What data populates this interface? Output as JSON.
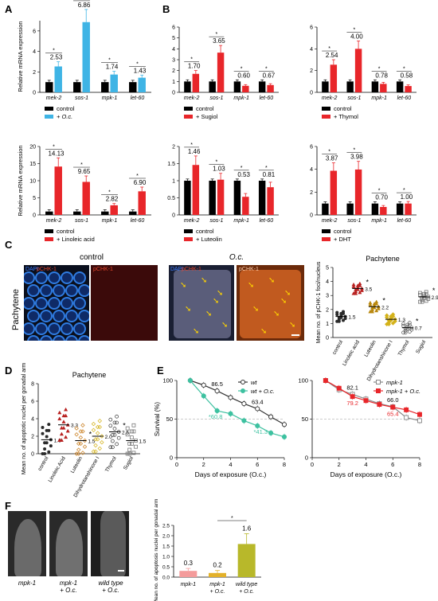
{
  "panel_letters": [
    "A",
    "B",
    "C",
    "D",
    "E",
    "F"
  ],
  "colors": {
    "black": "#000000",
    "blue": "#3fb4e5",
    "red": "#e8262a",
    "green": "#3dc1a0",
    "yellow": "#b8b82a",
    "pink": "#f49b9b",
    "gold": "#e3b12a"
  },
  "chart_data": [
    {
      "id": "A1",
      "type": "bar",
      "ylabel": "Relative mRNA expression",
      "ylim": [
        0,
        7
      ],
      "yticks": [
        0,
        2,
        4,
        6
      ],
      "categories": [
        "mek-2",
        "sos-1",
        "mpk-1",
        "let-60"
      ],
      "series": [
        {
          "name": "control",
          "values": [
            1.0,
            1.0,
            1.0,
            1.0
          ]
        },
        {
          "name": "+ O.c.",
          "values": [
            2.53,
            6.86,
            1.74,
            1.43
          ]
        }
      ],
      "labels": [
        "2.53",
        "6.86",
        "1.74",
        "1.43"
      ]
    },
    {
      "id": "B1",
      "type": "bar",
      "ylabel": "",
      "ylim": [
        0,
        6
      ],
      "yticks": [
        0,
        1,
        2,
        3,
        4,
        5,
        6
      ],
      "categories": [
        "mek-2",
        "sos-1",
        "mpk-1",
        "let-60"
      ],
      "series": [
        {
          "name": "control",
          "values": [
            1.0,
            1.0,
            1.0,
            1.0
          ]
        },
        {
          "name": "+ Sugiol",
          "values": [
            1.7,
            3.65,
            0.6,
            0.67
          ]
        }
      ],
      "labels": [
        "1.70",
        "3.65",
        "0.60",
        "0.67"
      ]
    },
    {
      "id": "B2",
      "type": "bar",
      "ylabel": "",
      "ylim": [
        0,
        6
      ],
      "yticks": [
        0,
        2,
        4,
        6
      ],
      "categories": [
        "mek-2",
        "sos-1",
        "mpk-1",
        "let-60"
      ],
      "series": [
        {
          "name": "control",
          "values": [
            1.0,
            1.0,
            1.0,
            1.0
          ]
        },
        {
          "name": "+ Thymol",
          "values": [
            2.54,
            4.0,
            0.78,
            0.58
          ]
        }
      ],
      "labels": [
        "2.54",
        "4.00",
        "0.78",
        "0.58"
      ]
    },
    {
      "id": "A2",
      "type": "bar",
      "ylabel": "Relative mRNA expression",
      "ylim": [
        0,
        20
      ],
      "yticks": [
        0,
        5,
        10,
        15,
        20
      ],
      "categories": [
        "mek-2",
        "sos-1",
        "mpk-1",
        "let-60"
      ],
      "series": [
        {
          "name": "control",
          "values": [
            1.0,
            1.0,
            1.0,
            1.0
          ]
        },
        {
          "name": "+ Linoleic acid",
          "values": [
            14.13,
            9.65,
            2.82,
            6.9
          ]
        }
      ],
      "labels": [
        "14.13",
        "9.65",
        "2.82",
        "6.90"
      ]
    },
    {
      "id": "B3",
      "type": "bar",
      "ylabel": "",
      "ylim": [
        0,
        2.0
      ],
      "yticks": [
        0.0,
        0.5,
        1.0,
        1.5,
        2.0
      ],
      "categories": [
        "mek-2",
        "sos-1",
        "mpk-1",
        "let-60"
      ],
      "series": [
        {
          "name": "control",
          "values": [
            1.0,
            1.0,
            1.0,
            1.0
          ]
        },
        {
          "name": "+ Luteolin",
          "values": [
            1.46,
            1.03,
            0.53,
            0.81
          ]
        }
      ],
      "labels": [
        "1.46",
        "1.03",
        "0.53",
        "0.81"
      ]
    },
    {
      "id": "B4",
      "type": "bar",
      "ylabel": "",
      "ylim": [
        0,
        6
      ],
      "yticks": [
        0,
        2,
        4,
        6
      ],
      "categories": [
        "mek-2",
        "sos-1",
        "mpk-1",
        "let-60"
      ],
      "series": [
        {
          "name": "control",
          "values": [
            1.0,
            1.0,
            1.0,
            1.0
          ]
        },
        {
          "name": "+ DHT",
          "values": [
            3.87,
            3.98,
            0.7,
            1.0
          ]
        }
      ],
      "labels": [
        "3.87",
        "3.98",
        "0.70",
        "1.00"
      ]
    },
    {
      "id": "C",
      "type": "scatter",
      "title": "Pachytene",
      "ylabel": "Mean no. of pCHK-1 foci/nucleus",
      "ylim": [
        0,
        5
      ],
      "yticks": [
        0,
        1,
        2,
        3,
        4,
        5
      ],
      "categories": [
        "control",
        "Linoleic acid",
        "Luteolin",
        "Dihydrotanshinone I",
        "Thymol",
        "Sugiol"
      ],
      "means": [
        1.5,
        3.5,
        2.2,
        1.3,
        0.7,
        2.9
      ],
      "labels": [
        "1.5",
        "3.5",
        "2.2",
        "1.3",
        "0.7",
        "2.9"
      ]
    },
    {
      "id": "D",
      "type": "scatter",
      "title": "Pachytene",
      "ylabel": "Mean no. of apoptotic nuclei per gonadal arm",
      "ylim": [
        0,
        8
      ],
      "yticks": [
        0,
        2,
        4,
        6,
        8
      ],
      "categories": [
        "control",
        "Linoleic Acid",
        "Luteolin",
        "Dihydrotanshinone I",
        "Thymol",
        "Sugiol"
      ],
      "means": [
        1.6,
        3.3,
        1.5,
        2.0,
        2.5,
        1.5
      ],
      "labels": [
        "1.6",
        "3.3",
        "1.5",
        "2.0",
        "2.5",
        "1.5"
      ]
    },
    {
      "id": "E1",
      "type": "line",
      "xlabel": "Days of exposure (O.c.)",
      "ylabel": "Survival (%)",
      "xlim": [
        0,
        8
      ],
      "ylim": [
        0,
        100
      ],
      "xticks": [
        0,
        2,
        4,
        6,
        8
      ],
      "yticks": [
        0,
        50,
        100
      ],
      "x": [
        1,
        2,
        3,
        4,
        5,
        6,
        7,
        8
      ],
      "series": [
        {
          "name": "wt",
          "values": [
            100,
            94,
            86.5,
            78,
            70,
            63.4,
            53,
            43
          ]
        },
        {
          "name": "wt + O.c.",
          "values": [
            100,
            80,
            60.8,
            57,
            48,
            41.3,
            32,
            27
          ]
        }
      ],
      "annotations": [
        "86.5",
        "63.4",
        "60.8",
        "41.3"
      ]
    },
    {
      "id": "E2",
      "type": "line",
      "xlabel": "Days of exposure (O.c.)",
      "ylabel": "",
      "xlim": [
        0,
        8
      ],
      "ylim": [
        0,
        100
      ],
      "xticks": [
        0,
        2,
        4,
        6,
        8
      ],
      "yticks": [
        0,
        50,
        100
      ],
      "x": [
        1,
        2,
        3,
        4,
        5,
        6,
        7,
        8
      ],
      "series": [
        {
          "name": "mpk-1",
          "values": [
            100,
            88,
            82.1,
            76,
            70,
            66.0,
            52,
            48
          ]
        },
        {
          "name": "mpk-1 + O.c.",
          "values": [
            100,
            90,
            79.2,
            74,
            69,
            65.4,
            62,
            56
          ]
        }
      ],
      "annotations": [
        "82.1",
        "79.2",
        "66.0",
        "65.4"
      ]
    },
    {
      "id": "F",
      "type": "bar",
      "ylabel": "Mean no. of apoptosis nuclei per gonadal arm",
      "ylim": [
        0,
        2.5
      ],
      "yticks": [
        0.0,
        0.5,
        1.0,
        1.5,
        2.0,
        2.5
      ],
      "categories": [
        "mpk-1",
        "mpk-1 + O.c.",
        "wild type + O.c."
      ],
      "values": [
        0.3,
        0.2,
        1.6
      ],
      "labels": [
        "0.3",
        "0.2",
        "1.6"
      ]
    }
  ],
  "panelC": {
    "control_title": "control",
    "oc_title": "O.c.",
    "row_label": "Pachytene",
    "channel_dapi": "DAPI",
    "channel_pchk": "pCHK-1"
  },
  "panelF": {
    "captions": [
      "mpk-1",
      "mpk-1\n+ O.c.",
      "wild type\n+ O.c."
    ]
  }
}
